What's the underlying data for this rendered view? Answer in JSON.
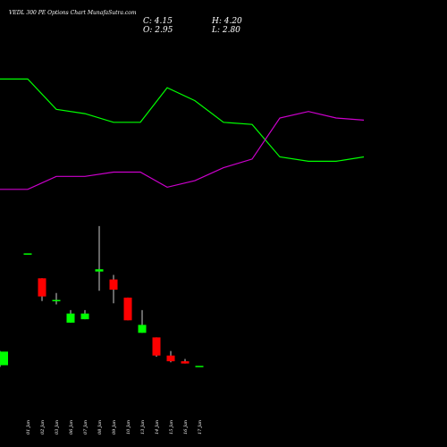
{
  "header": {
    "title": "VEDL 300 PE Options Chart MunafaSutra.com",
    "close": "C: 4.15",
    "high": "H: 4.20",
    "open": "O: 2.95",
    "low": "L: 2.80"
  },
  "colors": {
    "background": "#000000",
    "up": "#00ff00",
    "down": "#ff0000",
    "upper_line": "#00ff00",
    "lower_line": "#cc00cc",
    "wick": "#ffffff",
    "text": "#ffffff"
  },
  "chart_data": [
    {
      "type": "line",
      "series": [
        {
          "values": [
            80,
            80,
            66,
            64,
            60,
            60,
            76,
            70,
            60,
            59,
            44,
            42,
            42,
            44
          ]
        },
        {
          "values": [
            29,
            29,
            35,
            35,
            37,
            37,
            30,
            33,
            39,
            43,
            62,
            65,
            62,
            61
          ]
        }
      ],
      "ylim": [
        0,
        100
      ],
      "grid": false
    },
    {
      "type": "candlestick",
      "categories": [
        "01 Jan",
        "02 Jan",
        "03 Jan",
        "06 Jan",
        "07 Jan",
        "08 Jan",
        "09 Jan",
        "10 Jan",
        "13 Jan",
        "14 Jan",
        "15 Jan",
        "16 Jan",
        "17 Jan",
        "20 Jan"
      ],
      "ohlc": [
        {
          "o": 12.8,
          "h": 12.8,
          "l": 12.8,
          "c": 12.8
        },
        {
          "o": 10.6,
          "h": 10.6,
          "l": 8.6,
          "c": 9.0
        },
        {
          "o": 8.7,
          "h": 9.3,
          "l": 8.3,
          "c": 8.7
        },
        {
          "o": 6.7,
          "h": 7.8,
          "l": 6.7,
          "c": 7.5
        },
        {
          "o": 7.0,
          "h": 7.8,
          "l": 7.0,
          "c": 7.5
        },
        {
          "o": 11.2,
          "h": 15.2,
          "l": 9.5,
          "c": 11.4
        },
        {
          "o": 10.5,
          "h": 10.9,
          "l": 8.4,
          "c": 9.6
        },
        {
          "o": 8.9,
          "h": 8.9,
          "l": 6.9,
          "c": 6.9
        },
        {
          "o": 5.8,
          "h": 7.8,
          "l": 5.8,
          "c": 6.5
        },
        {
          "o": 5.4,
          "h": 5.4,
          "l": 3.7,
          "c": 3.8
        },
        {
          "o": 3.8,
          "h": 4.2,
          "l": 3.2,
          "c": 3.3
        },
        {
          "o": 3.3,
          "h": 3.5,
          "l": 3.1,
          "c": 3.1
        },
        {
          "o": 2.9,
          "h": 2.9,
          "l": 2.9,
          "c": 2.9
        },
        {
          "o": 2.95,
          "h": 4.2,
          "l": 2.8,
          "c": 4.15
        }
      ],
      "ylim": [
        0,
        17
      ],
      "grid": false
    }
  ]
}
